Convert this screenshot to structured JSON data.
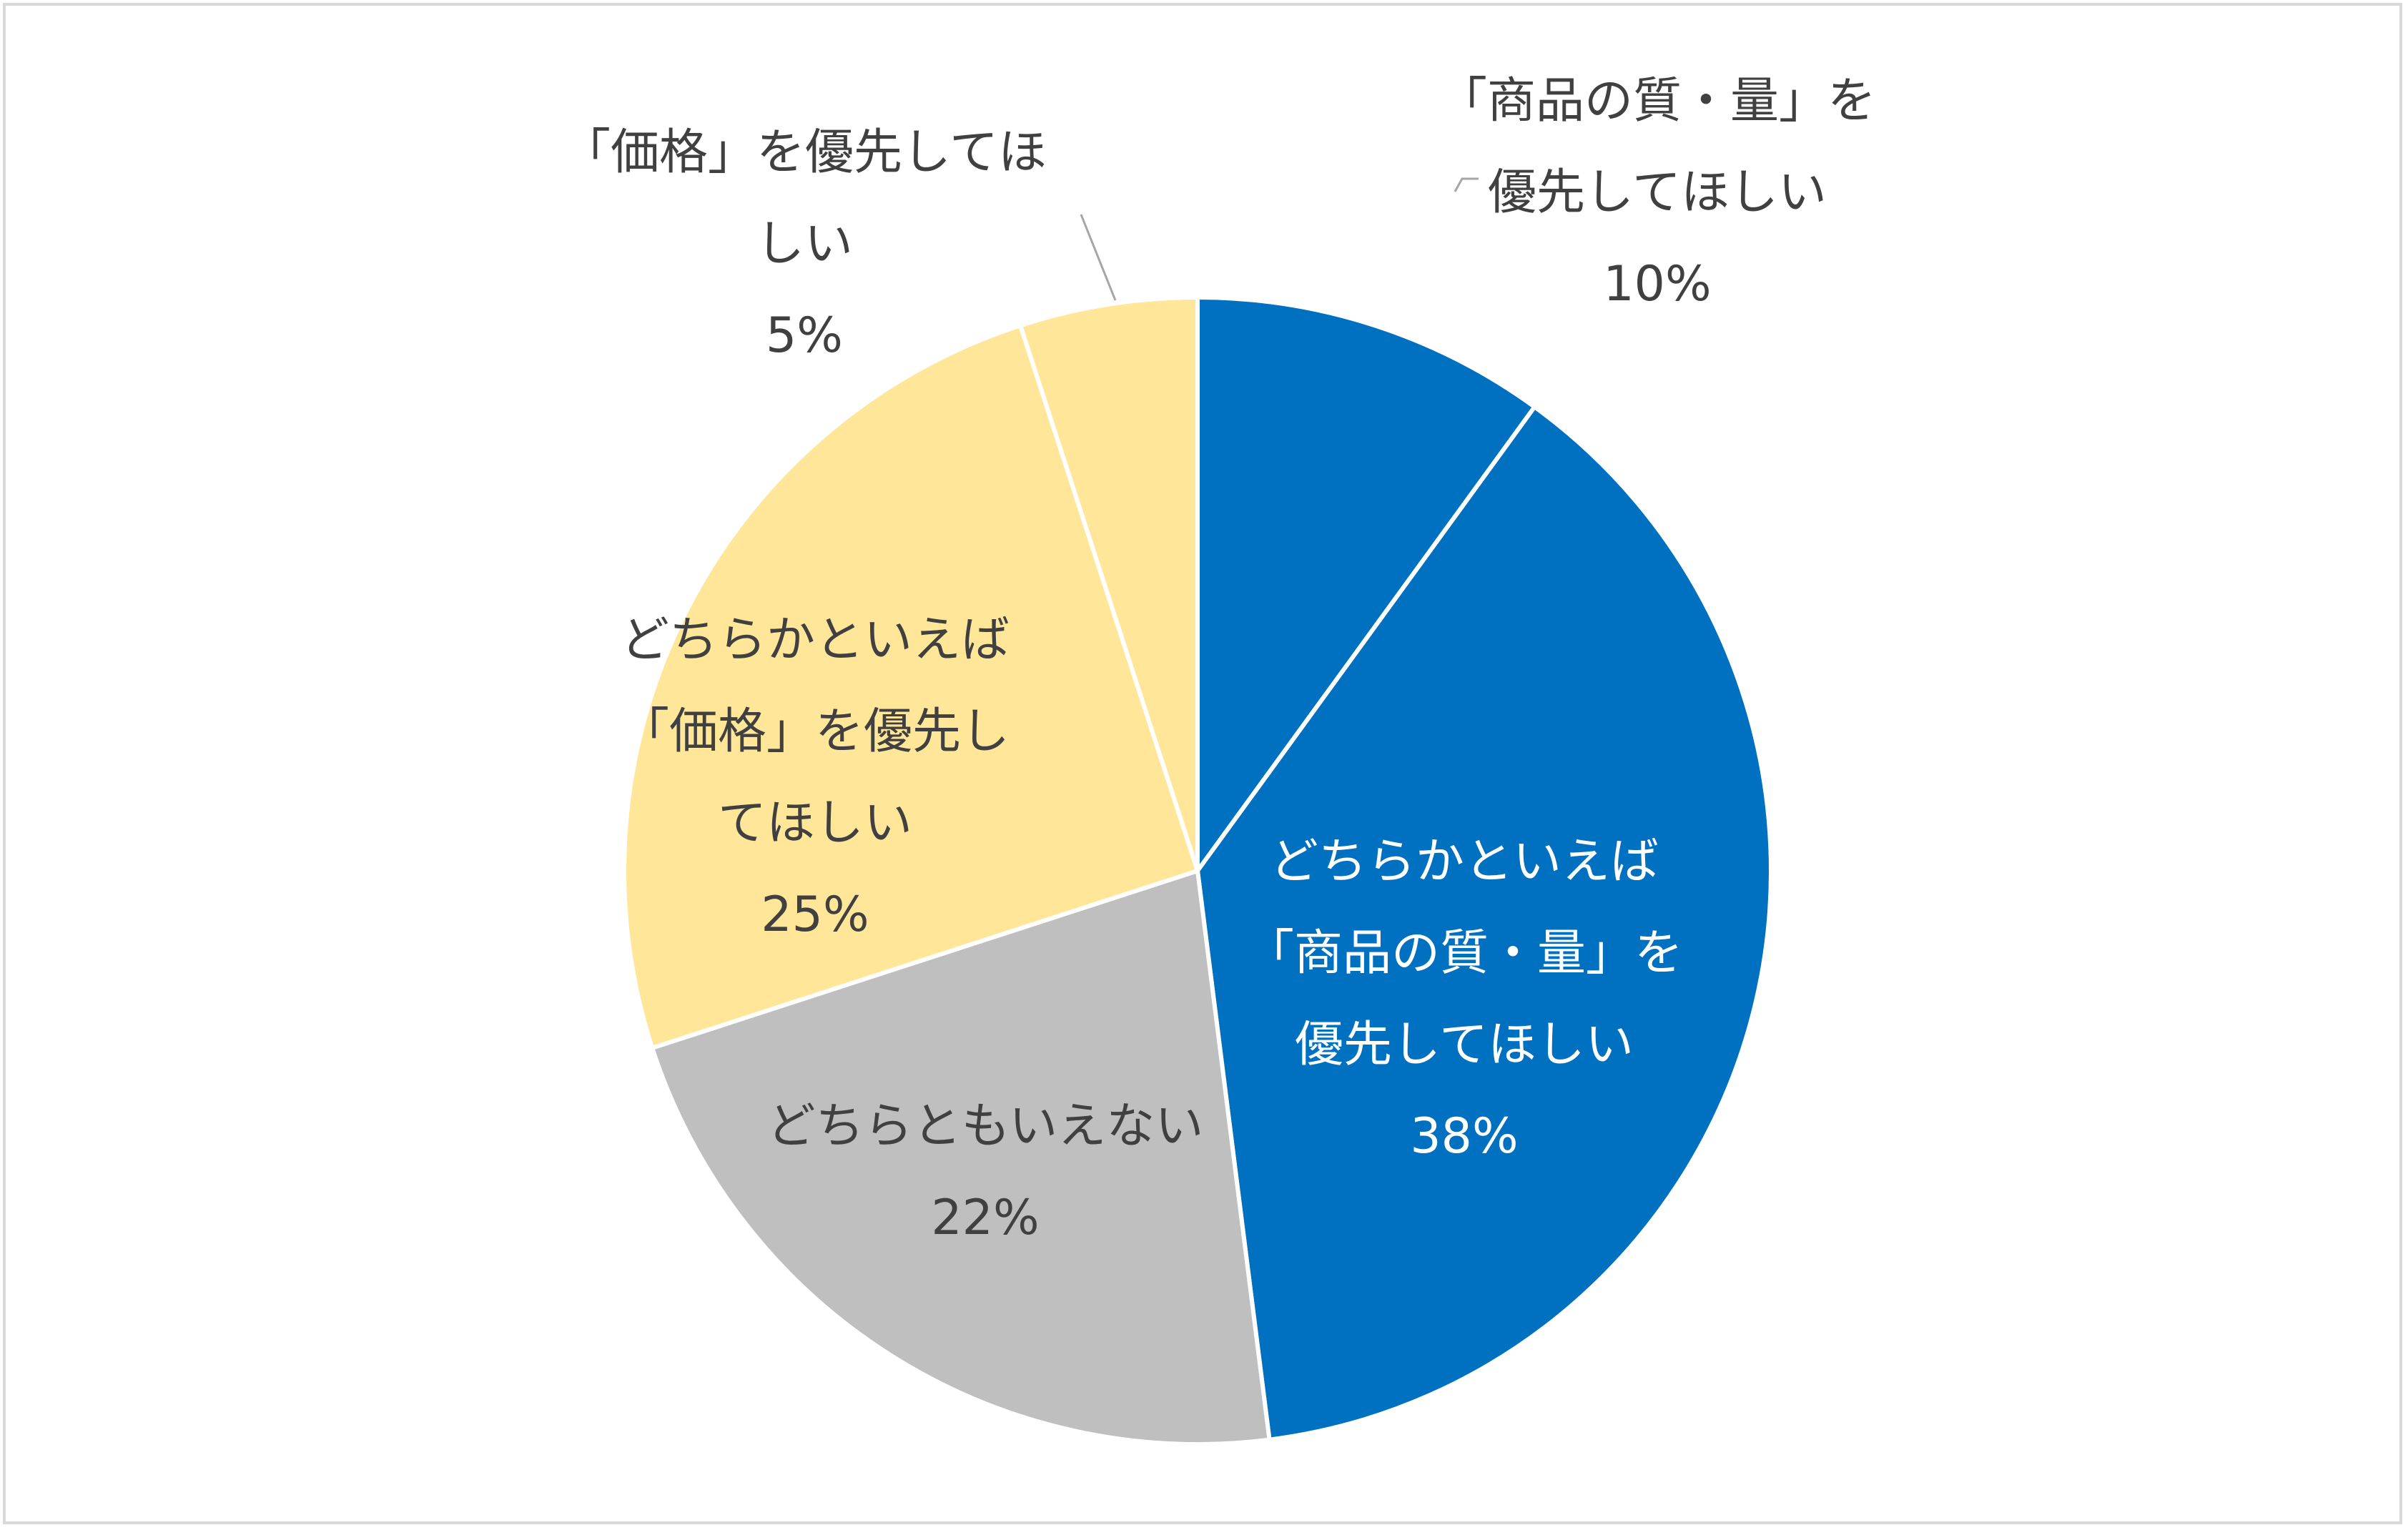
{
  "chart_data": {
    "type": "pie",
    "title": "",
    "slices": [
      {
        "name": "「商品の質・量」を優先してほしい",
        "value": 10,
        "label": "10%",
        "color": "#0070c0"
      },
      {
        "name": "どちらかといえば「商品の質・量」を優先してほしい",
        "value": 38,
        "label": "38%",
        "color": "#0070c0"
      },
      {
        "name": "どちらともいえない",
        "value": 22,
        "label": "22%",
        "color": "#bfbfbf"
      },
      {
        "name": "どちらかといえば「価格」を優先してほしい",
        "value": 25,
        "label": "25%",
        "color": "#ffe699"
      },
      {
        "name": "「価格」を優先してほしい",
        "value": 5,
        "label": "5%",
        "color": "#ffe699"
      }
    ],
    "label_lines": [
      [
        "「商品の質・量」を",
        "優先してほしい",
        "10%"
      ],
      [
        "どちらかといえば",
        "「商品の質・量」を",
        "優先してほしい",
        "38%"
      ],
      [
        "どちらともいえない",
        "22%"
      ],
      [
        "どちらかといえば",
        "「価格」を優先し",
        "てほしい",
        "25%"
      ],
      [
        "「価格」を優先してほ",
        "しい",
        "5%"
      ]
    ],
    "start_angle_deg": 0,
    "direction": "clockwise",
    "legend": "none"
  }
}
